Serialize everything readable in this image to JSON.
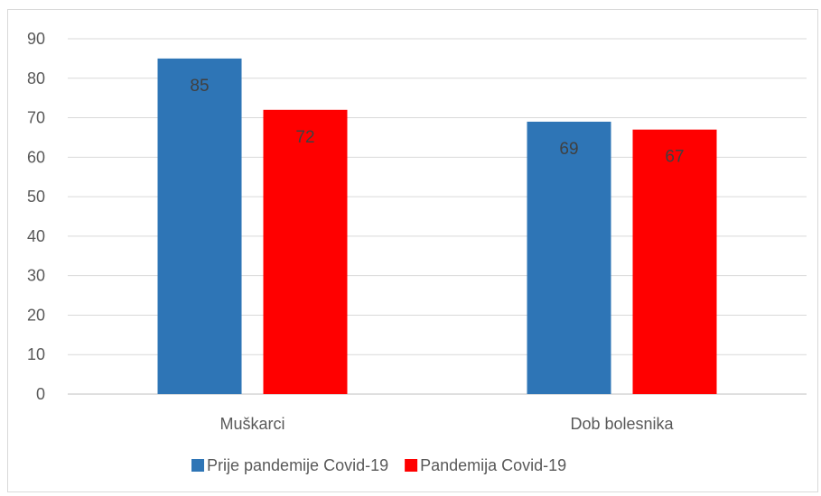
{
  "chart_data": {
    "type": "bar",
    "categories": [
      "Muškarci",
      "Dob bolesnika"
    ],
    "series": [
      {
        "name": "Prije pandemije Covid-19",
        "values": [
          85,
          69
        ],
        "color": "#2e75b6"
      },
      {
        "name": "Pandemija Covid-19",
        "values": [
          72,
          67
        ],
        "color": "#ff0000"
      }
    ],
    "ylim": [
      0,
      90
    ],
    "yticks": [
      0,
      10,
      20,
      30,
      40,
      50,
      60,
      70,
      80,
      90
    ],
    "grid": true,
    "legend": "bottom",
    "data_labels": true
  }
}
